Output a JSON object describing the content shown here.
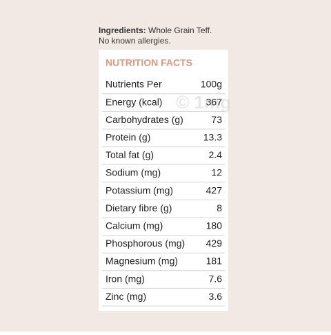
{
  "ingredients": {
    "label": "Ingredients:",
    "text": "Whole Grain Teff.",
    "note": "No known allergies."
  },
  "watermark": "© 1mg",
  "nutrition": {
    "title": "NUTRITION FACTS",
    "header": [
      "Nutrients Per",
      "100g"
    ],
    "rows": [
      [
        "Energy (kcal)",
        367
      ],
      [
        "Carbohydrates (g)",
        73
      ],
      [
        "Protein (g)",
        13.3
      ],
      [
        "Total fat (g)",
        2.4
      ],
      [
        "Sodium (mg)",
        12
      ],
      [
        "Potassium (mg)",
        427
      ],
      [
        "Dietary fibre (g)",
        8
      ],
      [
        "Calcium (mg)",
        180
      ],
      [
        "Phosphorous (mg)",
        429
      ],
      [
        "Magnesium (mg)",
        181
      ],
      [
        "Iron (mg)",
        7.6
      ],
      [
        "Zinc (mg)",
        3.6
      ]
    ]
  }
}
